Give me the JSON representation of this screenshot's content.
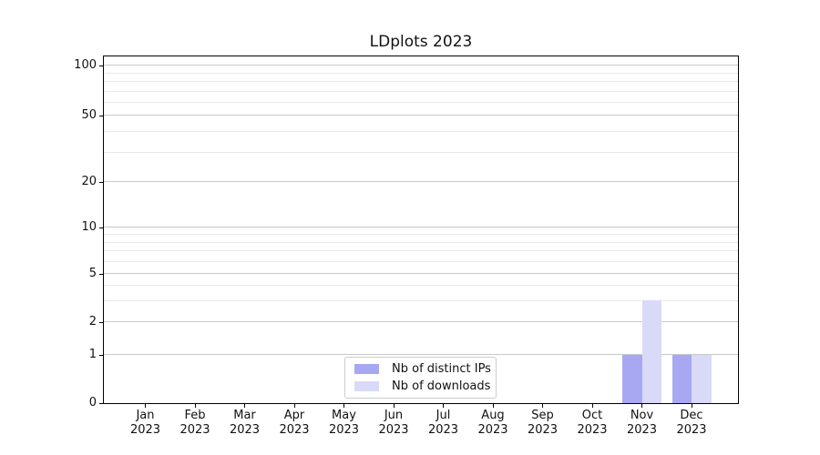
{
  "title": "LDplots 2023",
  "chart_data": {
    "type": "bar",
    "title": "LDplots 2023",
    "categories": [
      "Jan 2023",
      "Feb 2023",
      "Mar 2023",
      "Apr 2023",
      "May 2023",
      "Jun 2023",
      "Jul 2023",
      "Aug 2023",
      "Sep 2023",
      "Oct 2023",
      "Nov 2023",
      "Dec 2023"
    ],
    "x_months": [
      "Jan",
      "Feb",
      "Mar",
      "Apr",
      "May",
      "Jun",
      "Jul",
      "Aug",
      "Sep",
      "Oct",
      "Nov",
      "Dec"
    ],
    "x_year": "2023",
    "series": [
      {
        "name": "Nb of distinct IPs",
        "color": "#a8a8f2",
        "values": [
          0,
          0,
          0,
          0,
          0,
          0,
          0,
          0,
          0,
          0,
          1,
          1
        ]
      },
      {
        "name": "Nb of downloads",
        "color": "#d9d9f8",
        "values": [
          0,
          0,
          0,
          0,
          0,
          0,
          0,
          0,
          0,
          0,
          3,
          1
        ]
      }
    ],
    "y_ticks": [
      0,
      1,
      2,
      5,
      10,
      20,
      50,
      100
    ],
    "y_minor_ticks": [
      3,
      4,
      6,
      7,
      8,
      9,
      30,
      40,
      60,
      70,
      80,
      90
    ],
    "yscale": "log-like",
    "ylim": [
      0,
      110
    ],
    "grid": true,
    "legend_position": "lower-center-inside"
  }
}
